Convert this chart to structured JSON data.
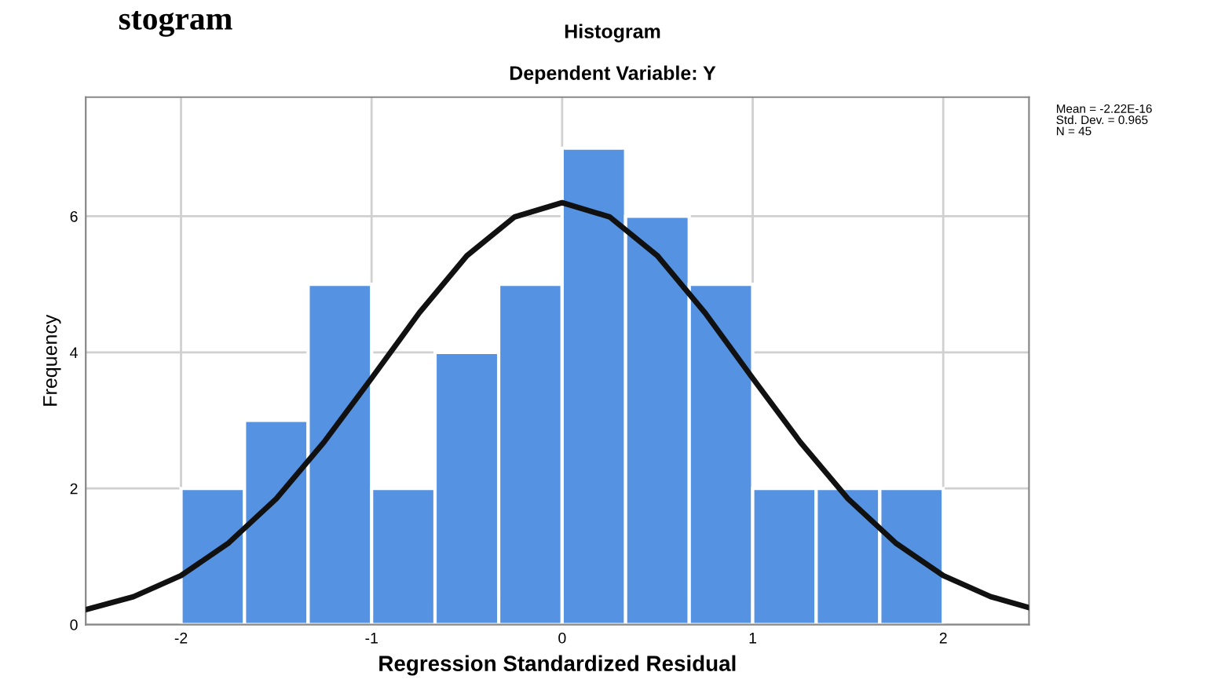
{
  "chart_data": {
    "type": "histogram",
    "title": "Histogram",
    "subtitle": "Dependent Variable: Y",
    "xlabel": "Regression Standardized Residual",
    "ylabel": "Frequency",
    "bins": [
      -2,
      -1.667,
      -1.333,
      -1,
      -0.667,
      -0.333,
      0,
      0.333,
      0.667,
      1,
      1.333,
      1.667,
      2
    ],
    "values": [
      2,
      3,
      5,
      2,
      4,
      5,
      7,
      6,
      5,
      2,
      2,
      2
    ],
    "color": "#5592e2",
    "series": [
      {
        "type": "line",
        "color": "#111111",
        "x": [
          -2.5,
          -2.25,
          -2,
          -1.75,
          -1.5,
          -1.25,
          -1,
          -0.75,
          -0.5,
          -0.25,
          0,
          0.25,
          0.5,
          0.75,
          1,
          1.25,
          1.5,
          1.75,
          2,
          2.25,
          2.45
        ],
        "values": [
          0.22,
          0.41,
          0.72,
          1.2,
          1.85,
          2.68,
          3.62,
          4.58,
          5.42,
          5.99,
          6.2,
          5.99,
          5.42,
          4.58,
          3.62,
          2.68,
          1.85,
          1.2,
          0.72,
          0.41,
          0.25
        ]
      }
    ],
    "xlim": [
      -2.5,
      2.45
    ],
    "xticks": [
      -2,
      -1,
      0,
      1,
      2
    ],
    "ylim": [
      0,
      7.75
    ],
    "yticks": [
      0,
      2,
      4,
      6
    ],
    "grid": true,
    "annotations": [
      "Mean = -2.22E-16\nStd. Dev. = 0.965\nN = 45",
      "stogram"
    ]
  }
}
